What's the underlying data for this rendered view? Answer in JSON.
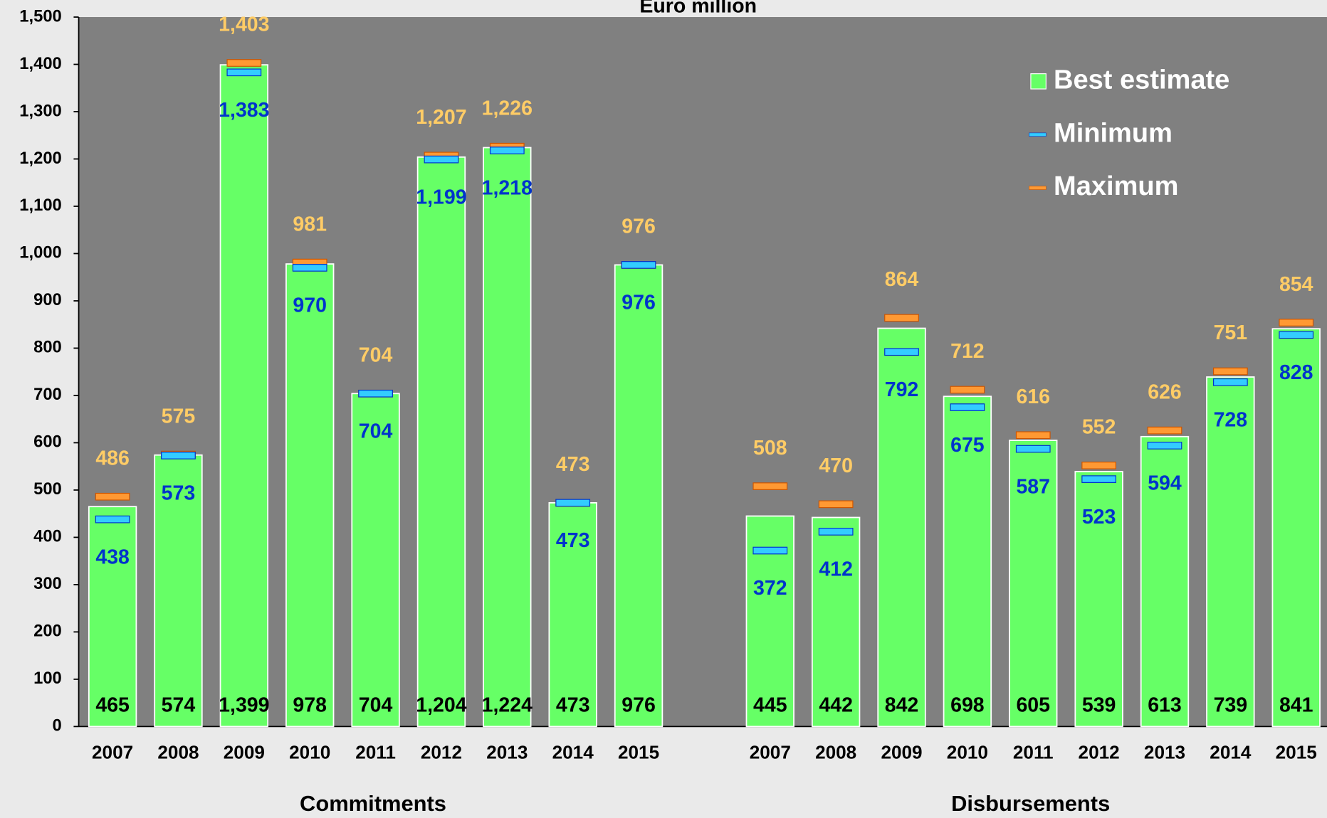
{
  "chart_data": {
    "type": "bar",
    "title": "Euro million",
    "categories": [
      "2007",
      "2008",
      "2009",
      "2010",
      "2011",
      "2012",
      "2013",
      "2014",
      "2015",
      null,
      "2007",
      "2008",
      "2009",
      "2010",
      "2011",
      "2012",
      "2013",
      "2014",
      "2015"
    ],
    "group_labels": [
      "Commitments",
      "Disbursements"
    ],
    "series": [
      {
        "name": "Best estimate",
        "color": "#66ff66",
        "values": [
          465,
          574,
          1399,
          978,
          704,
          1204,
          1224,
          473,
          976,
          null,
          445,
          442,
          842,
          698,
          605,
          539,
          613,
          739,
          841
        ],
        "value_labels": [
          "465",
          "574",
          "1,399",
          "978",
          "704",
          "1,204",
          "1,224",
          "473",
          "976",
          null,
          "445",
          "442",
          "842",
          "698",
          "605",
          "539",
          "613",
          "739",
          "841"
        ]
      },
      {
        "name": "Minimum",
        "color": "#33ccff",
        "values": [
          438,
          573,
          1383,
          970,
          704,
          1199,
          1218,
          473,
          976,
          null,
          372,
          412,
          792,
          675,
          587,
          523,
          594,
          728,
          828
        ],
        "value_labels": [
          "438",
          "573",
          "1,383",
          "970",
          "704",
          "1,199",
          "1,218",
          "473",
          "976",
          null,
          "372",
          "412",
          "792",
          "675",
          "587",
          "523",
          "594",
          "728",
          "828"
        ]
      },
      {
        "name": "Maximum",
        "color": "#ff9933",
        "values": [
          486,
          575,
          1403,
          981,
          704,
          1207,
          1226,
          473,
          976,
          null,
          508,
          470,
          864,
          712,
          616,
          552,
          626,
          751,
          854
        ],
        "value_labels": [
          "486",
          "575",
          "1,403",
          "981",
          "704",
          "1,207",
          "1,226",
          "473",
          "976",
          null,
          "508",
          "470",
          "864",
          "712",
          "616",
          "552",
          "626",
          "751",
          "854"
        ]
      }
    ],
    "ylim": [
      0,
      1500
    ],
    "yticks": [
      0,
      100,
      200,
      300,
      400,
      500,
      600,
      700,
      800,
      900,
      {
        "value": 1000,
        "label": "1,000"
      },
      {
        "value": 1100,
        "label": "1,100"
      },
      {
        "value": 1200,
        "label": "1,200"
      },
      {
        "value": 1300,
        "label": "1,300"
      },
      {
        "value": 1400,
        "label": "1,400"
      },
      {
        "value": 1500,
        "label": "1,500"
      }
    ],
    "legend": "top-right"
  }
}
